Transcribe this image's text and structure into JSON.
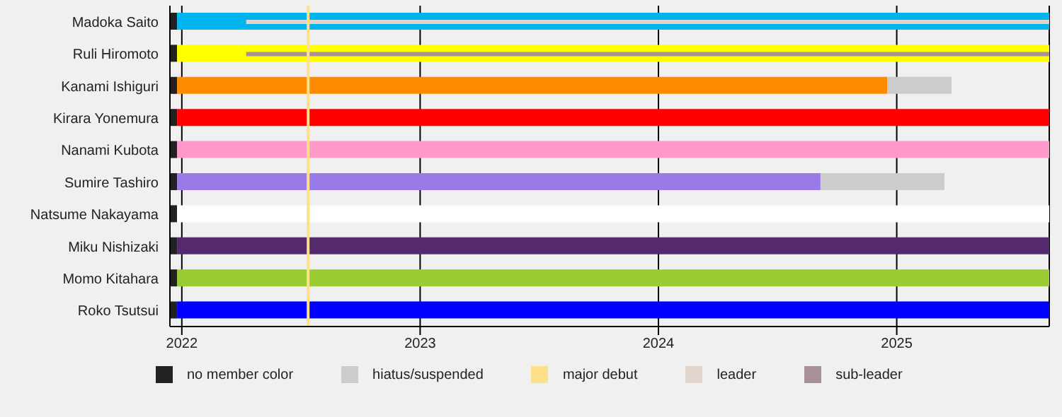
{
  "chart_data": {
    "type": "bar",
    "orientation": "horizontal",
    "categories": [
      "Madoka Saito",
      "Ruli Hiromoto",
      "Kanami Ishiguri",
      "Kirara Yonemura",
      "Nanami Kubota",
      "Sumire Tashiro",
      "Natsume Nakayama",
      "Miku Nishizaki",
      "Momo Kitahara",
      "Roko Tsutsui"
    ],
    "xlim": [
      2021.95,
      2025.64
    ],
    "xticks": [
      2022,
      2023,
      2024,
      2025
    ],
    "grid": "x",
    "legend": "bottom",
    "series": [
      {
        "name": "no member color",
        "color": "#222222",
        "base": [
          2021.95,
          2021.95,
          2021.95,
          2021.95,
          2021.95,
          2021.95,
          2021.95,
          2021.95,
          2021.95,
          2021.95
        ],
        "values": [
          0.03,
          0.03,
          0.03,
          0.03,
          0.03,
          0.03,
          0.03,
          0.03,
          0.03,
          0.03
        ]
      },
      {
        "colors": [
          "#00b4f0",
          "#ffff00",
          "#ff8c00",
          "#ff0000",
          "#ff99cc",
          "#9a7ae8",
          "#ffffff",
          "#55296e",
          "#99cc33",
          "#0000ff"
        ],
        "base": [
          2021.98,
          2021.98,
          2021.98,
          2021.98,
          2021.98,
          2021.98,
          2021.98,
          2021.98,
          2021.98,
          2021.98
        ],
        "values": [
          3.66,
          3.66,
          2.98,
          3.66,
          3.66,
          2.7,
          3.66,
          3.66,
          3.66,
          3.66
        ]
      },
      {
        "name": "hiatus/suspended",
        "color": "#cccccc",
        "base": [
          null,
          null,
          2024.96,
          null,
          null,
          2024.68,
          null,
          null,
          null,
          null
        ],
        "values": [
          null,
          null,
          0.27,
          null,
          null,
          0.52,
          null,
          null,
          null,
          null
        ]
      },
      {
        "name": "leader",
        "color": "#e0d4cc",
        "base": [
          2022.27,
          null,
          null,
          null,
          null,
          null,
          null,
          null,
          null,
          null
        ],
        "values": [
          3.37,
          null,
          null,
          null,
          null,
          null,
          null,
          null,
          null,
          null
        ]
      },
      {
        "name": "sub-leader",
        "color": "#a89098",
        "base": [
          null,
          2022.27,
          null,
          null,
          null,
          null,
          null,
          null,
          null,
          null
        ],
        "values": [
          null,
          3.37,
          null,
          null,
          null,
          null,
          null,
          null,
          null,
          null
        ]
      }
    ],
    "ref_lines": [
      {
        "axis": "x",
        "value": 2022.53,
        "label": "major debut",
        "color": "#ffe08a"
      }
    ]
  }
}
